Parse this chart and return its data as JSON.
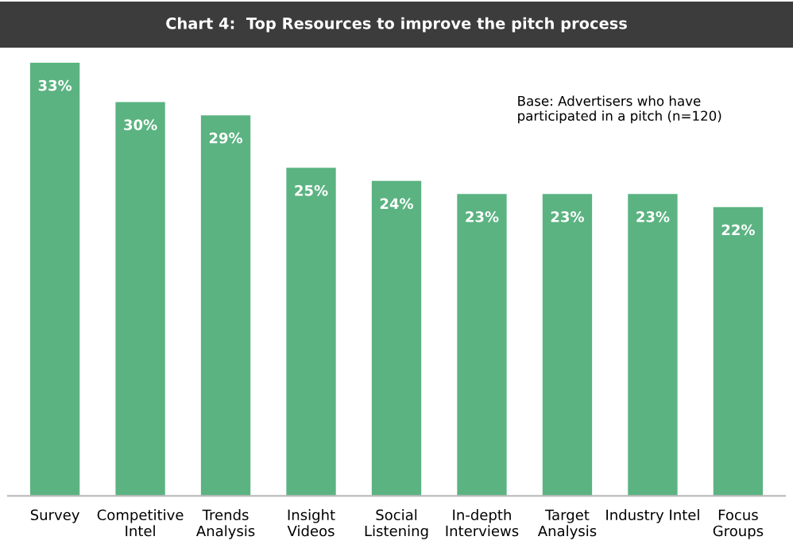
{
  "chart_data": {
    "type": "bar",
    "title": "Chart 4:  Top Resources to improve the pitch process",
    "categories": [
      "Survey",
      "Competitive\nIntel",
      "Trends\nAnalysis",
      "Insight\nVideos",
      "Social\nListening",
      "In-depth\nInterviews",
      "Target\nAnalysis",
      "Industry Intel",
      "Focus\nGroups"
    ],
    "values": [
      33,
      30,
      29,
      25,
      24,
      23,
      23,
      23,
      22
    ],
    "value_labels": [
      "33%",
      "30%",
      "29%",
      "25%",
      "24%",
      "23%",
      "23%",
      "23%",
      "22%"
    ],
    "color": "#5bb381",
    "annotations": [
      "Base: Advertisers who have\nparticipated in a pitch (n=120)"
    ],
    "grid": false,
    "legend": false
  }
}
